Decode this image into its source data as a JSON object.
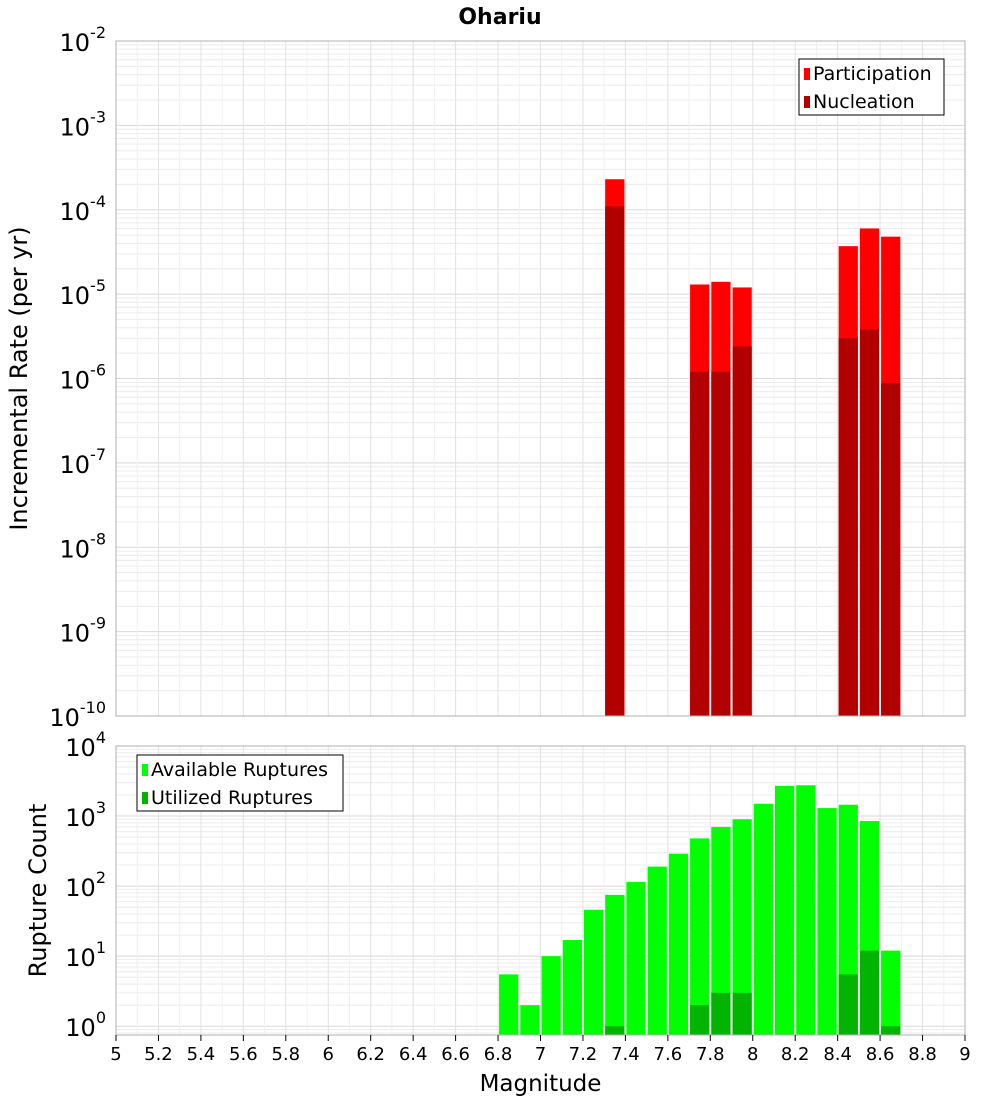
{
  "title": "Ohariu",
  "chart_data": [
    {
      "type": "bar",
      "panel": "top",
      "ylabel": "Incremental Rate (per yr)",
      "yscale": "log",
      "ylim": [
        1e-10,
        0.01
      ],
      "ytick_exponents": [
        -10,
        -9,
        -8,
        -7,
        -6,
        -5,
        -4,
        -3,
        -2
      ],
      "bin_width": 0.1,
      "legend": {
        "position": "top-right"
      },
      "series": [
        {
          "name": "Participation",
          "color": "#ff0000",
          "x": [
            7.35,
            7.75,
            7.85,
            7.95,
            8.45,
            8.55,
            8.65
          ],
          "values": [
            0.00023,
            1.3e-05,
            1.4e-05,
            1.2e-05,
            3.7e-05,
            6e-05,
            4.8e-05
          ]
        },
        {
          "name": "Nucleation",
          "color": "#b20000",
          "x": [
            7.35,
            7.75,
            7.85,
            7.95,
            8.45,
            8.55,
            8.65
          ],
          "values": [
            0.00011,
            1.2e-06,
            1.2e-06,
            2.4e-06,
            3e-06,
            3.8e-06,
            8.8e-07
          ]
        }
      ]
    },
    {
      "type": "bar",
      "panel": "bottom",
      "xlabel": "Magnitude",
      "ylabel": "Rupture Count",
      "yscale": "log",
      "ylim": [
        0.75,
        10000
      ],
      "ytick_exponents": [
        0,
        1,
        2,
        3,
        4
      ],
      "xlim": [
        5,
        9
      ],
      "xticks": [
        "5",
        "5.2",
        "5.4",
        "5.6",
        "5.8",
        "6",
        "6.2",
        "6.4",
        "6.6",
        "6.8",
        "7",
        "7.2",
        "7.4",
        "7.6",
        "7.8",
        "8",
        "8.2",
        "8.4",
        "8.6",
        "8.8",
        "9"
      ],
      "bin_width": 0.1,
      "legend": {
        "position": "top-left"
      },
      "series": [
        {
          "name": "Available Ruptures",
          "color": "#00ff00",
          "x": [
            6.85,
            6.95,
            7.05,
            7.15,
            7.25,
            7.35,
            7.45,
            7.55,
            7.65,
            7.75,
            7.85,
            7.95,
            8.05,
            8.15,
            8.25,
            8.35,
            8.45,
            8.55,
            8.65
          ],
          "values": [
            5.5,
            2,
            10,
            17,
            46,
            75,
            115,
            190,
            290,
            480,
            700,
            900,
            1500,
            2700,
            2750,
            1300,
            1450,
            850,
            12
          ]
        },
        {
          "name": "Utilized Ruptures",
          "color": "#00b400",
          "x": [
            7.35,
            7.75,
            7.85,
            7.95,
            8.45,
            8.55,
            8.65
          ],
          "values": [
            1,
            2,
            3,
            3,
            5.5,
            12,
            1
          ]
        }
      ]
    }
  ]
}
